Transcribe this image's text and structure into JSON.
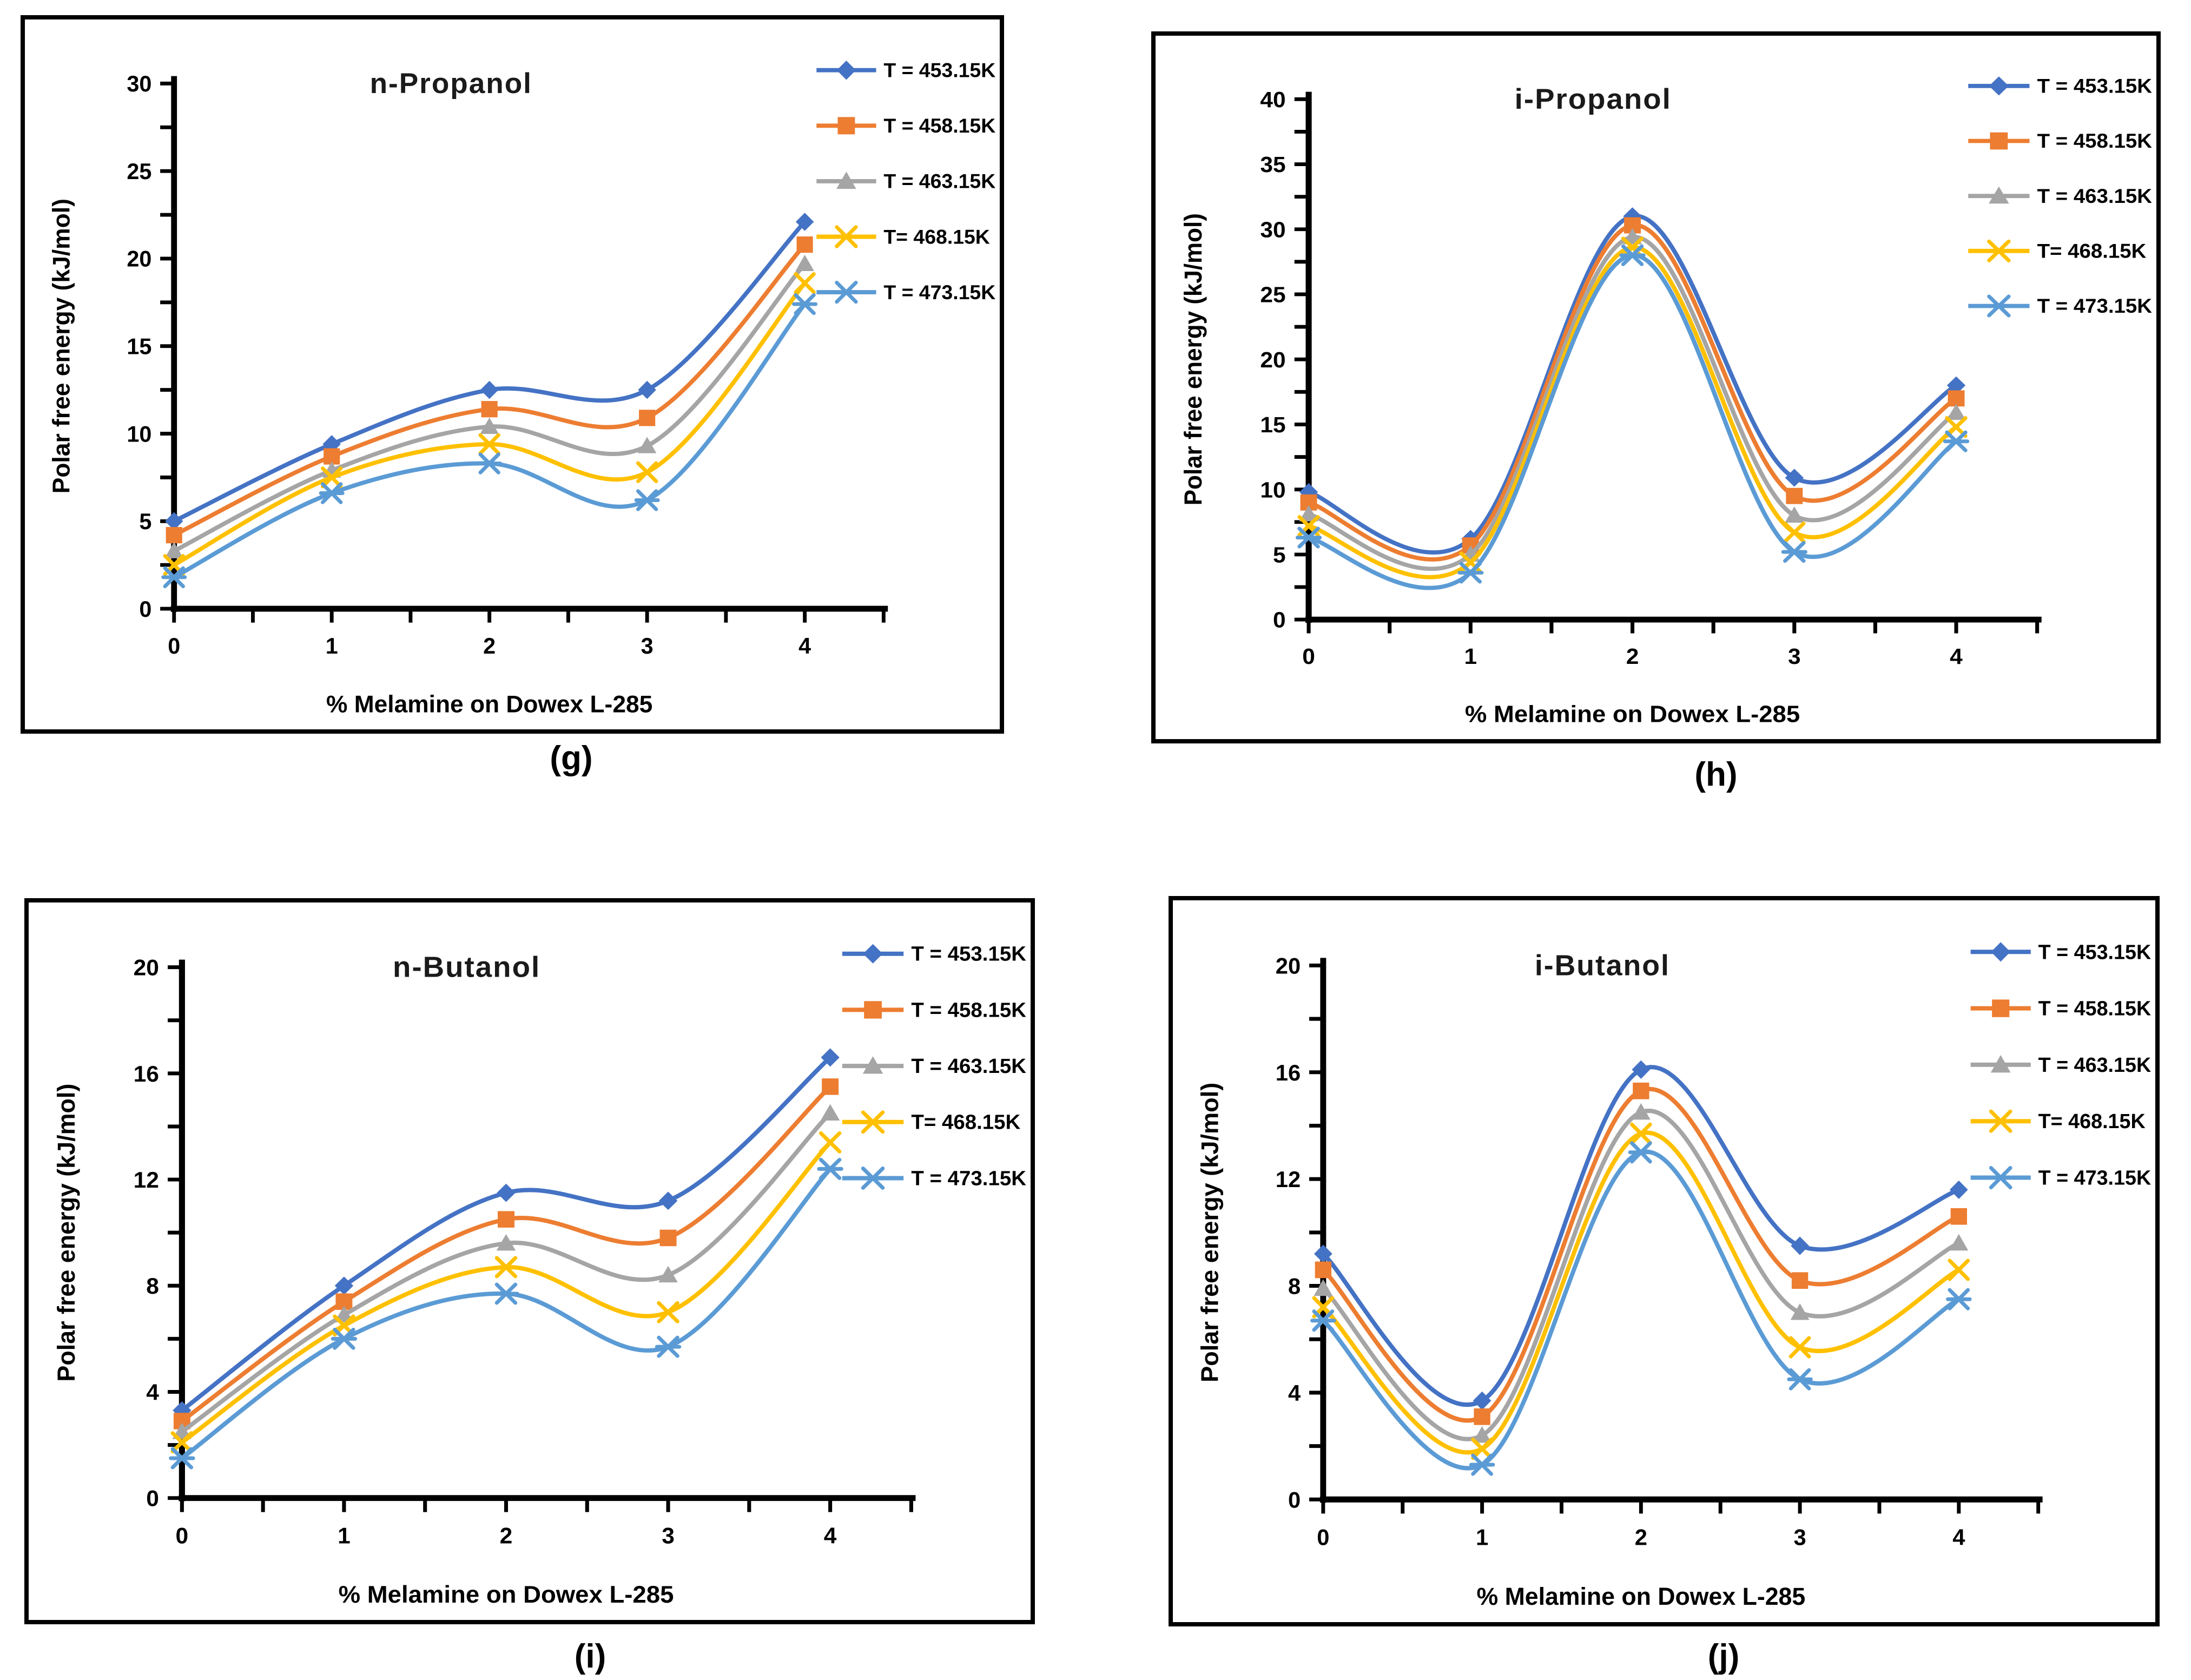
{
  "figure": {
    "x_axis_title": "% Melamine on Dowex L-285",
    "y_axis_title": "Polar free energy (kJ/mol)",
    "series_colors": {
      "T453": "#4472C4",
      "T458": "#ED7D31",
      "T463": "#A5A5A5",
      "T468": "#FFC000",
      "T473": "#5B9BD5"
    },
    "axis_color": "#000000",
    "background": "#ffffff"
  },
  "chart_data": [
    {
      "id": "g",
      "type": "line",
      "title": "n-Propanol",
      "caption": "(g)",
      "xlabel": "% Melamine on Dowex L-285",
      "ylabel": "Polar free energy (kJ/mol)",
      "x": [
        0,
        1,
        2,
        3,
        4
      ],
      "ylim": [
        0,
        30
      ],
      "ytick_step": 5,
      "grid": false,
      "smooth": true,
      "legend_position": "top-right",
      "series": [
        {
          "name": "T = 453.15K",
          "marker": "diamond",
          "color": "#4472C4",
          "values": [
            5.0,
            9.4,
            12.5,
            12.5,
            22.1
          ]
        },
        {
          "name": "T = 458.15K",
          "marker": "square",
          "color": "#ED7D31",
          "values": [
            4.2,
            8.7,
            11.4,
            10.9,
            20.8
          ]
        },
        {
          "name": "T = 463.15K",
          "marker": "triangle",
          "color": "#A5A5A5",
          "values": [
            3.3,
            7.9,
            10.4,
            9.3,
            19.7
          ]
        },
        {
          "name": "T= 468.15K",
          "marker": "x",
          "color": "#FFC000",
          "values": [
            2.5,
            7.5,
            9.4,
            7.8,
            18.6
          ]
        },
        {
          "name": "T = 473.15K",
          "marker": "asterisk",
          "color": "#5B9BD5",
          "values": [
            1.8,
            6.6,
            8.3,
            6.2,
            17.4
          ]
        }
      ]
    },
    {
      "id": "h",
      "type": "line",
      "title": "i-Propanol",
      "caption": "(h)",
      "xlabel": "% Melamine on Dowex L-285",
      "ylabel": "Polar free energy (kJ/mol)",
      "x": [
        0,
        1,
        2,
        3,
        4
      ],
      "ylim": [
        0,
        40
      ],
      "ytick_step": 5,
      "grid": false,
      "smooth": true,
      "legend_position": "top-right",
      "series": [
        {
          "name": "T = 453.15K",
          "marker": "diamond",
          "color": "#4472C4",
          "values": [
            9.8,
            6.2,
            31.0,
            10.9,
            18.0
          ]
        },
        {
          "name": "T = 458.15K",
          "marker": "square",
          "color": "#ED7D31",
          "values": [
            9.0,
            5.7,
            30.3,
            9.5,
            17.0
          ]
        },
        {
          "name": "T = 463.15K",
          "marker": "triangle",
          "color": "#A5A5A5",
          "values": [
            8.1,
            5.0,
            29.4,
            8.0,
            15.9
          ]
        },
        {
          "name": "T= 468.15K",
          "marker": "x",
          "color": "#FFC000",
          "values": [
            7.2,
            4.4,
            28.6,
            6.7,
            14.8
          ]
        },
        {
          "name": "T = 473.15K",
          "marker": "asterisk",
          "color": "#5B9BD5",
          "values": [
            6.3,
            3.6,
            28.0,
            5.2,
            13.7
          ]
        }
      ]
    },
    {
      "id": "i",
      "type": "line",
      "title": "n-Butanol",
      "caption": "(i)",
      "xlabel": "% Melamine on Dowex L-285",
      "ylabel": "Polar free energy (kJ/mol)",
      "x": [
        0,
        1,
        2,
        3,
        4
      ],
      "ylim": [
        0,
        20
      ],
      "ytick_step": 4,
      "grid": false,
      "smooth": true,
      "legend_position": "top-right",
      "series": [
        {
          "name": "T = 453.15K",
          "marker": "diamond",
          "color": "#4472C4",
          "values": [
            3.3,
            8.0,
            11.5,
            11.2,
            16.6
          ]
        },
        {
          "name": "T = 458.15K",
          "marker": "square",
          "color": "#ED7D31",
          "values": [
            2.9,
            7.4,
            10.5,
            9.8,
            15.5
          ]
        },
        {
          "name": "T = 463.15K",
          "marker": "triangle",
          "color": "#A5A5A5",
          "values": [
            2.5,
            6.9,
            9.6,
            8.4,
            14.5
          ]
        },
        {
          "name": "T= 468.15K",
          "marker": "x",
          "color": "#FFC000",
          "values": [
            2.1,
            6.5,
            8.7,
            7.0,
            13.4
          ]
        },
        {
          "name": "T = 473.15K",
          "marker": "asterisk",
          "color": "#5B9BD5",
          "values": [
            1.5,
            6.0,
            7.7,
            5.7,
            12.4
          ]
        }
      ]
    },
    {
      "id": "j",
      "type": "line",
      "title": "i-Butanol",
      "caption": "(j)",
      "xlabel": "% Melamine on Dowex L-285",
      "ylabel": "Polar free energy (kJ/mol)",
      "x": [
        0,
        1,
        2,
        3,
        4
      ],
      "ylim": [
        0,
        20
      ],
      "ytick_step": 4,
      "grid": false,
      "smooth": true,
      "legend_position": "top-right",
      "series": [
        {
          "name": "T = 453.15K",
          "marker": "diamond",
          "color": "#4472C4",
          "values": [
            9.2,
            3.7,
            16.1,
            9.5,
            11.6
          ]
        },
        {
          "name": "T = 458.15K",
          "marker": "square",
          "color": "#ED7D31",
          "values": [
            8.6,
            3.1,
            15.3,
            8.2,
            10.6
          ]
        },
        {
          "name": "T = 463.15K",
          "marker": "triangle",
          "color": "#A5A5A5",
          "values": [
            7.9,
            2.4,
            14.5,
            7.0,
            9.6
          ]
        },
        {
          "name": "T= 468.15K",
          "marker": "x",
          "color": "#FFC000",
          "values": [
            7.2,
            1.9,
            13.7,
            5.7,
            8.6
          ]
        },
        {
          "name": "T = 473.15K",
          "marker": "asterisk",
          "color": "#5B9BD5",
          "values": [
            6.7,
            1.3,
            13.0,
            4.5,
            7.5
          ]
        }
      ]
    }
  ]
}
